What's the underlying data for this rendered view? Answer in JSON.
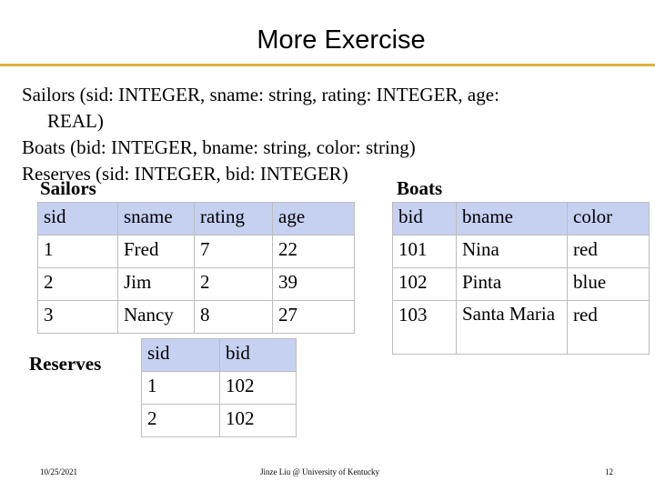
{
  "title": "More Exercise",
  "schema": {
    "line1": "Sailors (sid: INTEGER, sname: string, rating: INTEGER, age:",
    "line2": "REAL)",
    "line3": "Boats (bid: INTEGER, bname: string, color: string)",
    "line4": "Reserves (sid: INTEGER, bid: INTEGER)"
  },
  "sailors": {
    "caption": "Sailors",
    "headers": [
      "sid",
      "sname",
      "rating",
      "age"
    ],
    "rows": [
      [
        "1",
        "Fred",
        "7",
        "22"
      ],
      [
        "2",
        "Jim",
        "2",
        "39"
      ],
      [
        "3",
        "Nancy",
        "8",
        "27"
      ]
    ]
  },
  "boats": {
    "caption": "Boats",
    "headers": [
      "bid",
      "bname",
      "color"
    ],
    "rows": [
      [
        "101",
        "Nina",
        "red"
      ],
      [
        "102",
        "Pinta",
        "blue"
      ],
      [
        "103",
        "Santa Maria",
        "red"
      ]
    ]
  },
  "reserves": {
    "caption": "Reserves",
    "headers": [
      "sid",
      "bid"
    ],
    "rows": [
      [
        "1",
        "102"
      ],
      [
        "2",
        "102"
      ]
    ]
  },
  "footer": {
    "date": "10/25/2021",
    "author": "Jinze Liu @ University of Kentucky",
    "page": "12"
  },
  "colors": {
    "header_fill": "#c6d1f2",
    "rule": "#e0b13a"
  }
}
